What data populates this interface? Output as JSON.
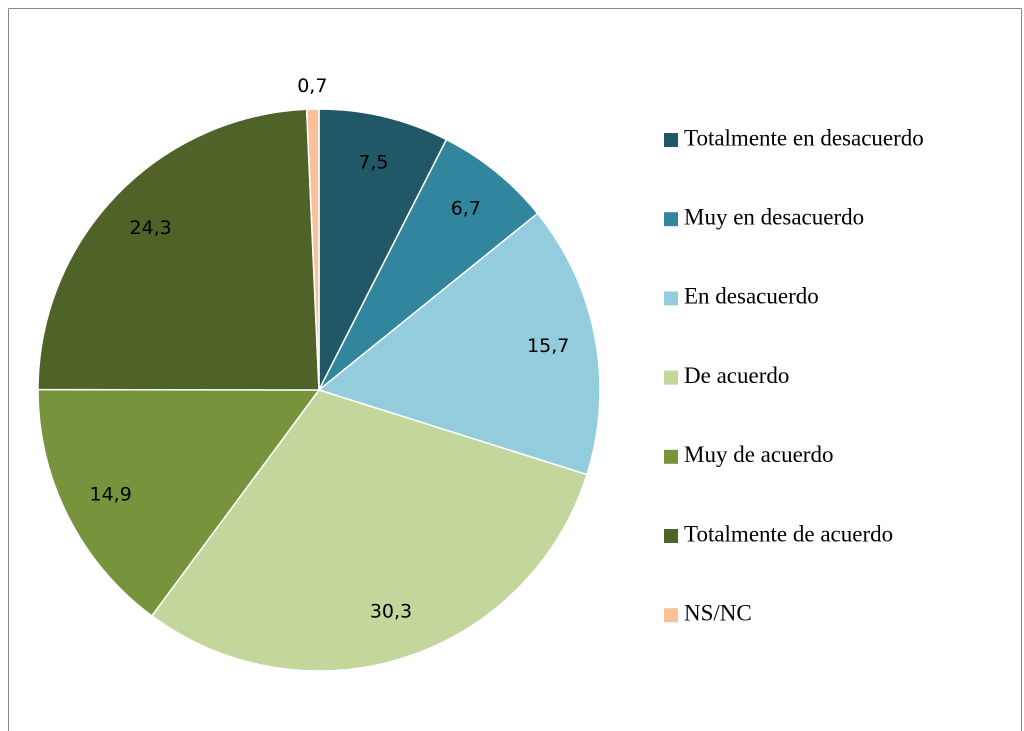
{
  "chart_data": {
    "type": "pie",
    "categories": [
      "Totalmente en desacuerdo",
      "Muy en desacuerdo",
      "En desacuerdo",
      "De acuerdo",
      "Muy de acuerdo",
      "Totalmente de acuerdo",
      "NS/NC"
    ],
    "values": [
      7.5,
      6.7,
      15.7,
      30.3,
      14.9,
      24.3,
      0.7
    ],
    "value_labels": [
      "7,5",
      "6,7",
      "15,7",
      "30,3",
      "14,9",
      "24,3",
      "0,7"
    ],
    "colors": [
      "#215868",
      "#31859c",
      "#93cddd",
      "#c3d69b",
      "#77933c",
      "#4f6228",
      "#fac09a"
    ],
    "legend": "right"
  }
}
